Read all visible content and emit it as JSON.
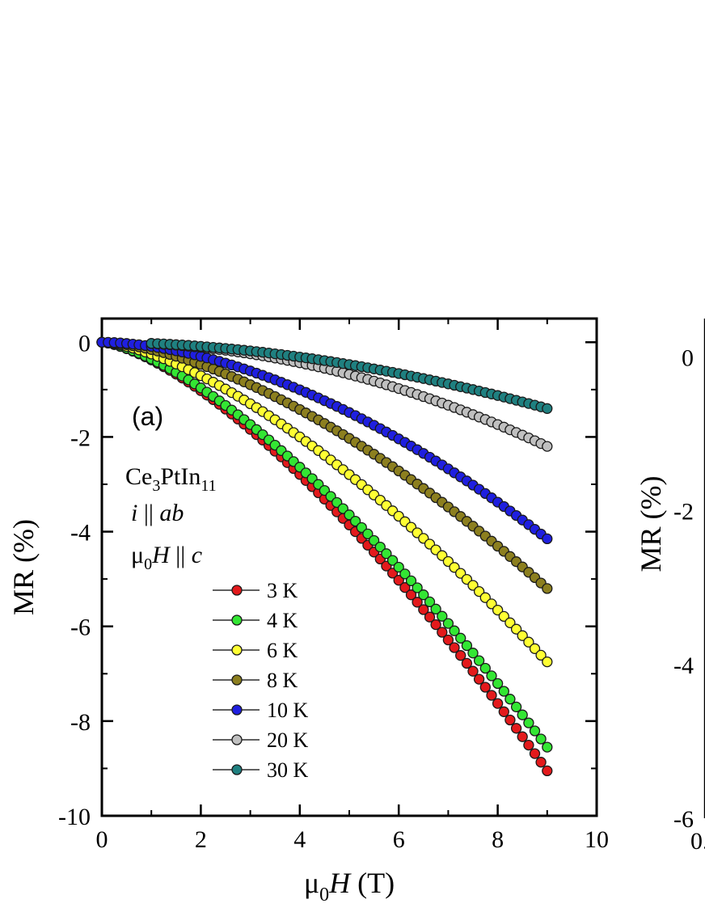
{
  "panel_a": {
    "panel_label": "(a)",
    "sample": {
      "base": "Ce",
      "sub1": "3",
      "mid": "PtIn",
      "sub2": "11"
    },
    "current_dir": {
      "i": "i",
      "sep": " || ",
      "ab": "ab"
    },
    "field_dir": {
      "mu": "μ",
      "sub0": "0",
      "H": "H",
      "sep": " || ",
      "c": "c"
    }
  },
  "chart_data": [
    {
      "type": "scatter",
      "title": "",
      "xlabel": "μ0H (T)",
      "ylabel": "MR (%)",
      "xlim": [
        0,
        10
      ],
      "ylim": [
        -10,
        0.5
      ],
      "xticks": [
        0,
        2,
        4,
        6,
        8,
        10
      ],
      "yticks": [
        0,
        -2,
        -4,
        -6,
        -8,
        -10
      ],
      "x_tick_labels": [
        "0",
        "2",
        "4",
        "6",
        "8",
        "10"
      ],
      "y_tick_labels": [
        "0",
        "-2",
        "-4",
        "-6",
        "-8",
        "-10"
      ],
      "marker": "circle",
      "legend_position": "center-left",
      "grid": false,
      "series": [
        {
          "name": "3 K",
          "color": "#e31a1c",
          "x_start": 0,
          "x_end": 9,
          "mr_at_9T": -9.05,
          "exponent": 1.45
        },
        {
          "name": "4 K",
          "color": "#33e633",
          "x_start": 0,
          "x_end": 9,
          "mr_at_9T": -8.55,
          "exponent": 1.45
        },
        {
          "name": "6 K",
          "color": "#ffff33",
          "x_start": 0,
          "x_end": 9,
          "mr_at_9T": -6.75,
          "exponent": 1.5
        },
        {
          "name": "8 K",
          "color": "#8c7f1f",
          "x_start": 0,
          "x_end": 9,
          "mr_at_9T": -5.2,
          "exponent": 1.6
        },
        {
          "name": "10 K",
          "color": "#1f1fe0",
          "x_start": 0,
          "x_end": 9,
          "mr_at_9T": -4.15,
          "exponent": 1.75
        },
        {
          "name": "20 K",
          "color": "#c0c0c0",
          "x_start": 1,
          "x_end": 9,
          "mr_at_9T": -2.2,
          "exponent": 2.0
        },
        {
          "name": "30 K",
          "color": "#1f8080",
          "x_start": 1,
          "x_end": 9,
          "mr_at_9T": -1.4,
          "exponent": 1.85
        }
      ]
    },
    {
      "type": "scatter",
      "title": "",
      "xlabel": "",
      "ylabel": "MR (%)",
      "ylim": [
        -6,
        0.5
      ],
      "yticks": [
        0,
        -2,
        -4,
        -6
      ],
      "y_tick_labels": [
        "0",
        "-2",
        "-4",
        "-6"
      ],
      "x_tick_labels": [
        "0."
      ]
    }
  ]
}
